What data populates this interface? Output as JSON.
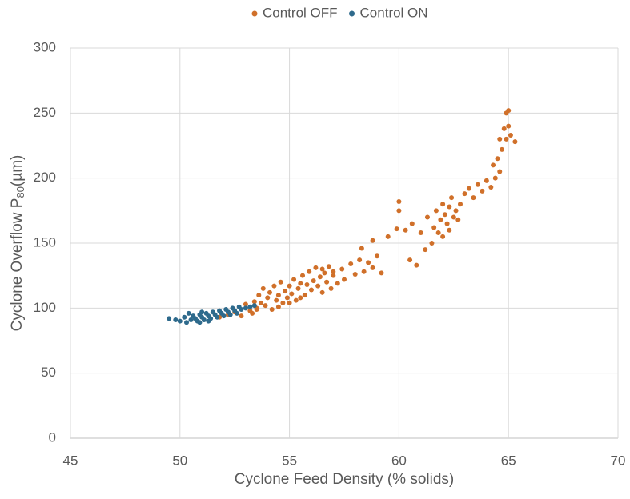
{
  "chart_data": {
    "type": "scatter",
    "legend": "top",
    "grid": true,
    "x_label": "Cyclone Feed Density (% solids)",
    "y_label": {
      "text": "Cyclone Overflow P",
      "sub": "80",
      "unit": "(µm)"
    },
    "xlim": [
      45,
      70
    ],
    "xticks": [
      45,
      50,
      55,
      60,
      65,
      70
    ],
    "ylim": [
      0,
      300
    ],
    "yticks": [
      0,
      50,
      100,
      150,
      200,
      250,
      300
    ],
    "series": [
      {
        "name": "Control OFF",
        "color": "#d0702a",
        "x": [
          51.8,
          52.2,
          52.5,
          52.8,
          53.0,
          53.2,
          53.4,
          53.5,
          53.6,
          53.7,
          53.8,
          53.9,
          54.0,
          54.1,
          54.2,
          54.3,
          54.4,
          54.5,
          54.6,
          54.7,
          54.8,
          54.9,
          55.0,
          55.1,
          55.2,
          55.3,
          55.4,
          55.5,
          55.6,
          55.7,
          55.8,
          55.9,
          56.0,
          56.1,
          56.2,
          56.3,
          56.4,
          56.5,
          56.6,
          56.7,
          56.8,
          56.9,
          57.0,
          57.2,
          57.4,
          57.5,
          57.8,
          58.0,
          58.2,
          58.4,
          58.6,
          58.8,
          59.0,
          58.3,
          58.8,
          59.2,
          59.5,
          59.9,
          60.0,
          60.0,
          60.3,
          60.6,
          60.5,
          60.8,
          61.0,
          61.2,
          61.3,
          61.5,
          61.6,
          61.7,
          61.8,
          61.9,
          62.0,
          62.0,
          62.1,
          62.2,
          62.3,
          62.3,
          62.4,
          62.5,
          62.6,
          62.7,
          62.8,
          63.0,
          63.2,
          63.4,
          63.6,
          63.8,
          64.0,
          64.2,
          64.3,
          64.4,
          64.5,
          64.6,
          64.7,
          64.8,
          64.9,
          64.9,
          65.0,
          65.0,
          65.1,
          65.3,
          64.6,
          53.5,
          54.5,
          55.5,
          56.5,
          57.0,
          55.0,
          53.3
        ],
        "values": [
          93,
          95,
          97,
          94,
          103,
          98,
          105,
          100,
          110,
          104,
          115,
          102,
          108,
          112,
          99,
          117,
          106,
          110,
          120,
          104,
          113,
          108,
          117,
          111,
          122,
          106,
          115,
          119,
          125,
          110,
          118,
          128,
          114,
          121,
          131,
          117,
          124,
          112,
          127,
          120,
          132,
          115,
          125,
          119,
          130,
          122,
          134,
          126,
          137,
          128,
          135,
          131,
          140,
          146,
          152,
          127,
          155,
          161,
          182,
          175,
          160,
          165,
          137,
          133,
          158,
          145,
          170,
          150,
          162,
          175,
          158,
          168,
          180,
          155,
          172,
          165,
          178,
          160,
          185,
          170,
          175,
          168,
          180,
          188,
          192,
          185,
          195,
          190,
          198,
          193,
          210,
          200,
          215,
          205,
          222,
          238,
          230,
          250,
          252,
          240,
          233,
          228,
          230,
          99,
          101,
          108,
          130,
          128,
          104,
          96
        ]
      },
      {
        "name": "Control ON",
        "color": "#2e6a8c",
        "x": [
          49.5,
          49.8,
          50.0,
          50.2,
          50.3,
          50.5,
          50.6,
          50.7,
          50.8,
          50.9,
          51.0,
          51.1,
          51.2,
          51.3,
          51.4,
          51.5,
          51.6,
          51.7,
          51.8,
          51.9,
          52.0,
          52.1,
          52.2,
          52.3,
          52.4,
          52.5,
          52.6,
          52.7,
          52.8,
          53.0,
          53.2,
          53.4,
          50.4,
          51.0,
          51.3,
          50.9
        ],
        "values": [
          92,
          91,
          90,
          93,
          89,
          91,
          94,
          92,
          90,
          95,
          93,
          91,
          96,
          94,
          92,
          97,
          95,
          93,
          98,
          96,
          94,
          99,
          97,
          95,
          100,
          98,
          96,
          101,
          99,
          100,
          101,
          102,
          96,
          97,
          90,
          89
        ]
      }
    ]
  }
}
